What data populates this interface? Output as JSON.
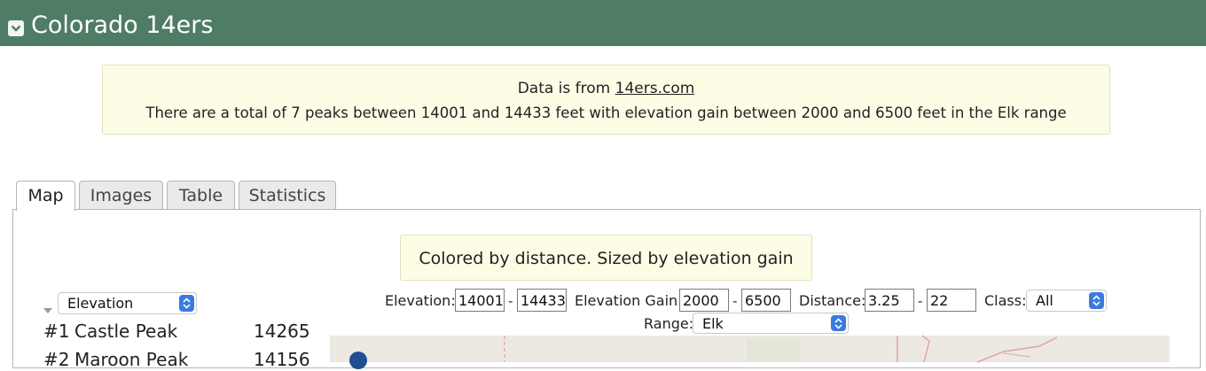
{
  "header": {
    "title": "Colorado 14ers",
    "collapse_icon": "chevron-down-icon",
    "background": "#4e7c64"
  },
  "info": {
    "line1_prefix": "Data is from ",
    "source_link": "14ers.com",
    "line2": "There are a total of 7 peaks between 14001 and 14433 feet with elevation gain between 2000 and 6500 feet in the Elk range"
  },
  "tabs": [
    {
      "label": "Map",
      "active": true
    },
    {
      "label": "Images",
      "active": false
    },
    {
      "label": "Table",
      "active": false
    },
    {
      "label": "Statistics",
      "active": false
    }
  ],
  "map_panel": {
    "legend_note": "Colored by distance. Sized by elevation gain",
    "sort_select": {
      "value": "Elevation",
      "toggle_icon": "triangle-down-icon"
    },
    "peaks": [
      {
        "rank": "#1",
        "name": "Castle Peak",
        "value": "14265"
      },
      {
        "rank": "#2",
        "name": "Maroon Peak",
        "value": "14156"
      }
    ],
    "filters": {
      "elevation_label": "Elevation:",
      "elevation_min": "14001",
      "elevation_max": "14433",
      "gain_label": "Elevation Gain:",
      "gain_min": "2000",
      "gain_max": "6500",
      "distance_label": "Distance:",
      "distance_min": "3.25",
      "distance_max": "22",
      "class_label": "Class:",
      "class_value": "All",
      "range_label": "Range:",
      "range_value": "Elk",
      "separator": "-"
    }
  }
}
